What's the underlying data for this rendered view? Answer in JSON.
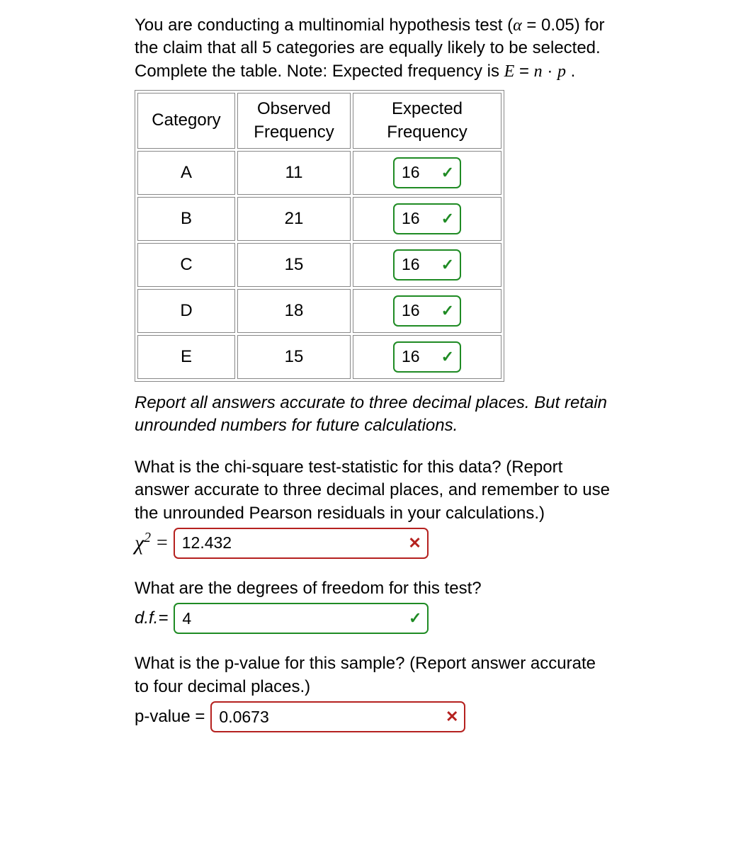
{
  "colors": {
    "correct": "#1f8b24",
    "wrong": "#b5211f",
    "border": "#888888",
    "text": "#000000",
    "background": "#ffffff"
  },
  "prompt": {
    "line1": "You are conducting a multinomial hypothesis test (",
    "alpha_sym": "α",
    "alpha_eq": " = 0.05) for the claim that all 5 categories are equally likely to be selected. Complete the table. Note: Expected frequency is ",
    "formula_E": "E",
    "formula_eq": " = ",
    "formula_n": "n",
    "formula_dot": " · ",
    "formula_p": "p",
    "formula_end": " ."
  },
  "table": {
    "headers": {
      "category": "Category",
      "observed": "Observed\nFrequency",
      "expected": "Expected\nFrequency"
    },
    "rows": [
      {
        "cat": "A",
        "obs": "11",
        "exp": "16",
        "status": "correct"
      },
      {
        "cat": "B",
        "obs": "21",
        "exp": "16",
        "status": "correct"
      },
      {
        "cat": "C",
        "obs": "15",
        "exp": "16",
        "status": "correct"
      },
      {
        "cat": "D",
        "obs": "18",
        "exp": "16",
        "status": "correct"
      },
      {
        "cat": "E",
        "obs": "15",
        "exp": "16",
        "status": "correct"
      }
    ]
  },
  "note": "Report all answers accurate to three decimal places. But retain unrounded numbers for future calculations.",
  "q_chi": {
    "text": "What is the chi-square test-statistic for this data? (Report answer accurate to three decimal places, and remember to use the unrounded Pearson residuals in your calculations.)",
    "label_chi": "χ",
    "label_eq": " = ",
    "value": "12.432",
    "status": "wrong"
  },
  "q_df": {
    "text": "What are the degrees of freedom for this test?",
    "label": "d.f.=",
    "value": "4",
    "status": "correct"
  },
  "q_pval": {
    "text": "What is the p-value for this sample? (Report answer accurate to four decimal places.)",
    "label": "p-value = ",
    "value": "0.0673",
    "status": "wrong"
  },
  "marks": {
    "correct": "✓",
    "wrong": "✕"
  }
}
